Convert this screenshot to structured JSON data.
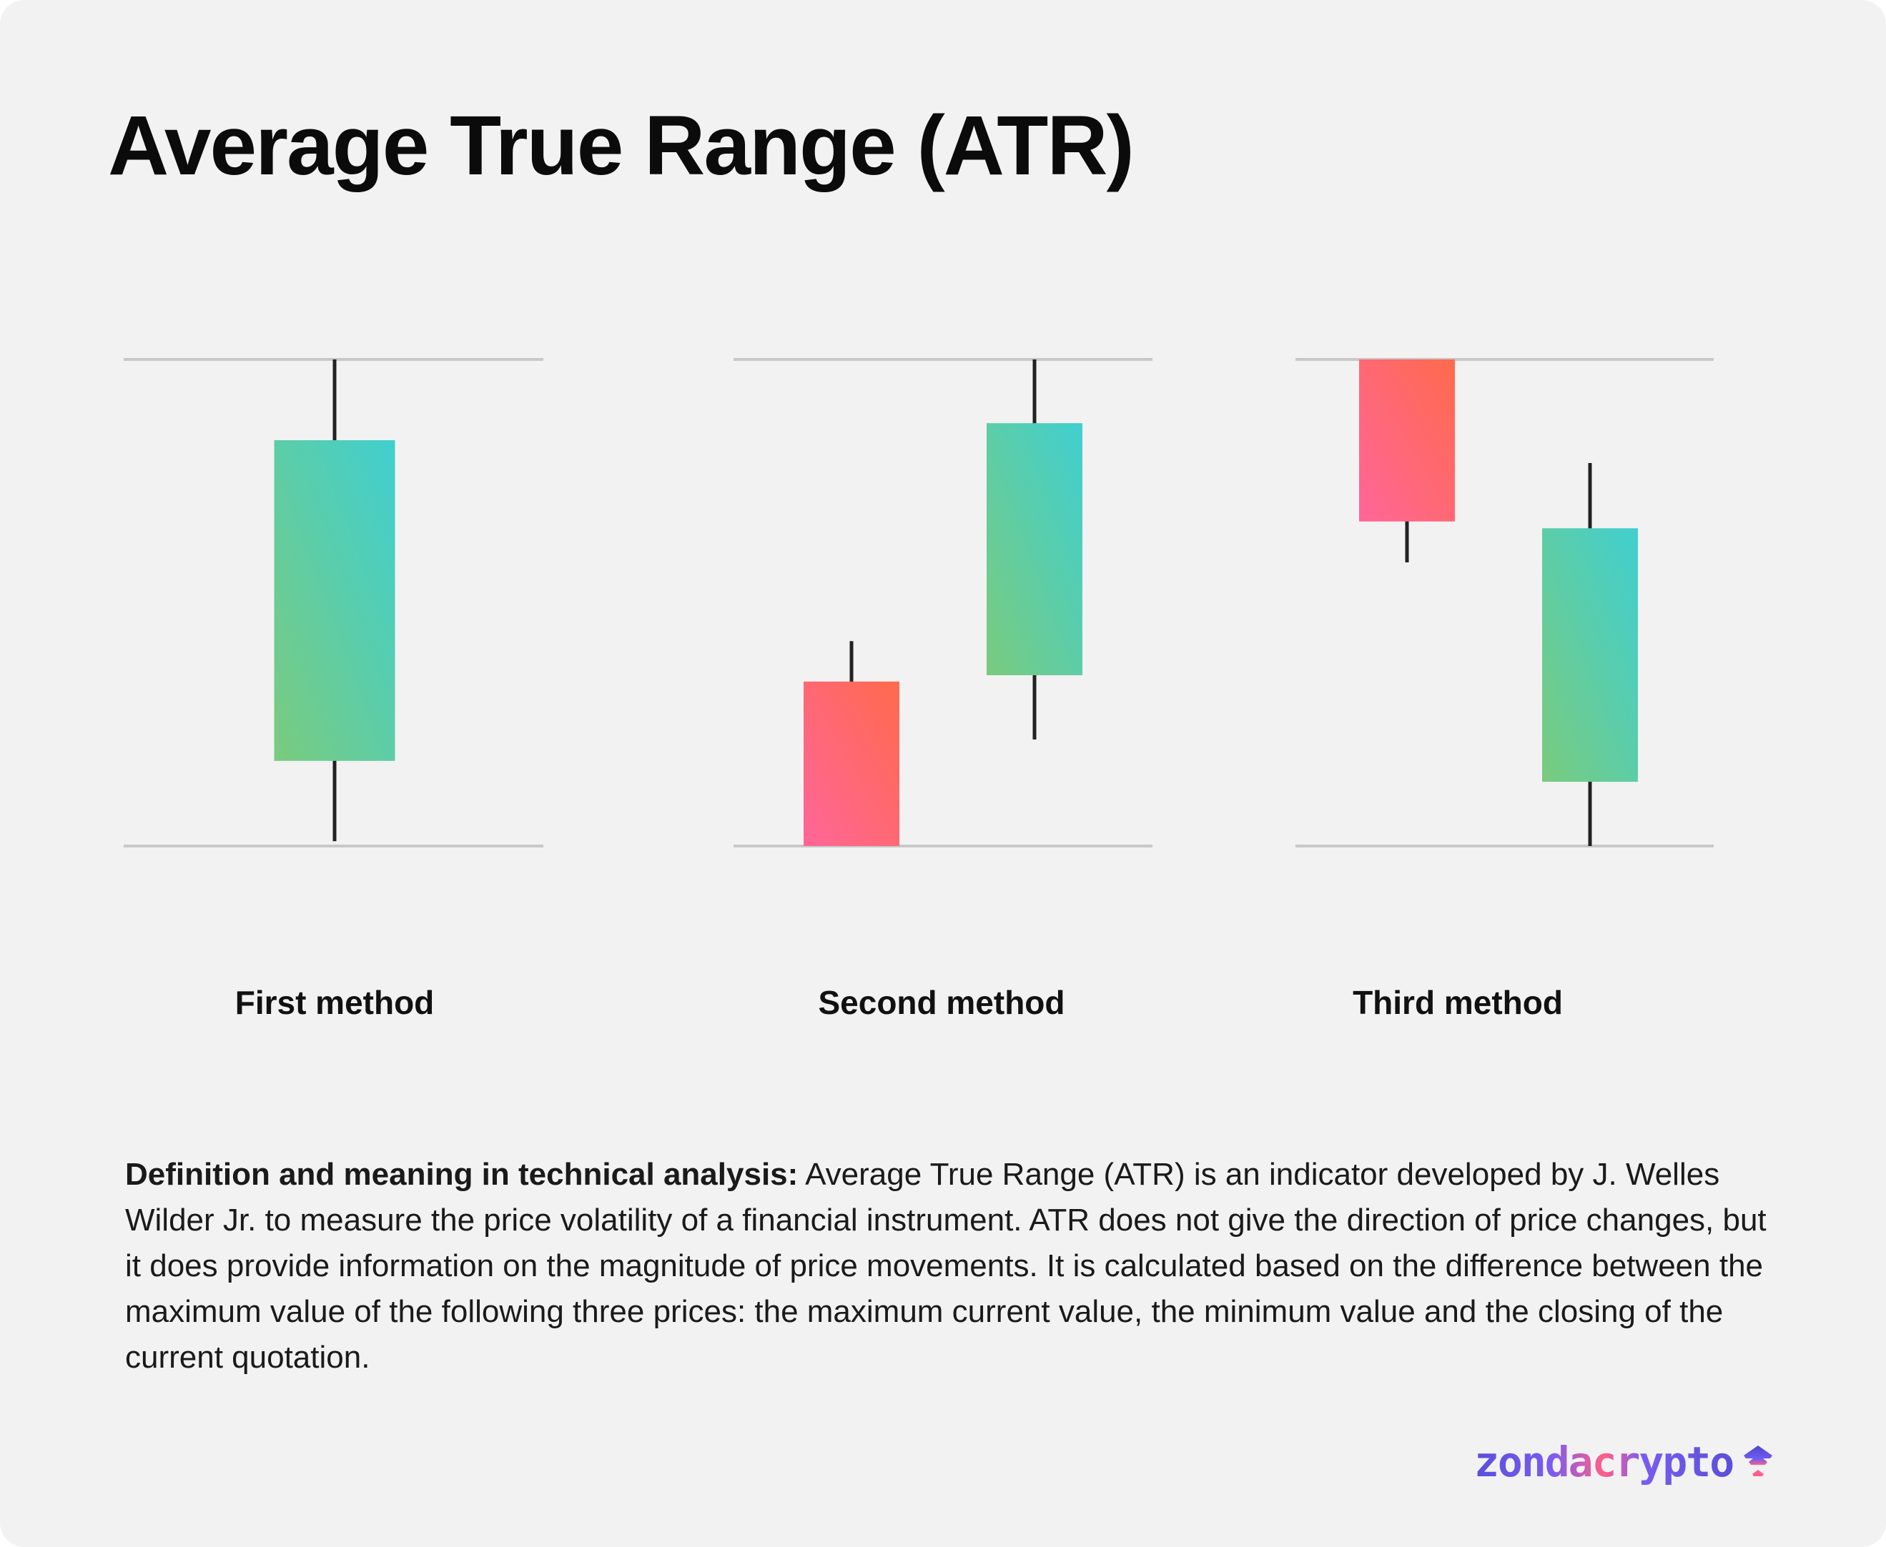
{
  "title": "Average True Range (ATR)",
  "chart_data": {
    "type": "candlestick",
    "ylim": [
      0,
      100
    ],
    "colors": {
      "bull_start": "#7acb7e",
      "bull_end": "#40cfd0",
      "bear_start": "#ff6699",
      "bear_end": "#ff6a4d",
      "wick": "#222222",
      "guide": "#c8c8c8"
    },
    "panels": [
      {
        "label": "First method",
        "candles": [
          {
            "open": 17.5,
            "high": 100,
            "low": 1,
            "close": 83.4
          }
        ]
      },
      {
        "label": "Second method",
        "candles": [
          {
            "open": 33.8,
            "high": 42.1,
            "low": 0,
            "close": 0
          },
          {
            "open": 35.1,
            "high": 100,
            "low": 21.9,
            "close": 86.9
          }
        ]
      },
      {
        "label": "Third method",
        "candles": [
          {
            "open": 100,
            "high": 100,
            "low": 58.3,
            "close": 66.7
          },
          {
            "open": 13.2,
            "high": 78.7,
            "low": 0,
            "close": 65.3
          }
        ]
      }
    ]
  },
  "description": {
    "lead": "Definition and meaning in technical analysis:",
    "body": " Average True Range (ATR) is an indicator developed by J. Welles Wilder Jr. to measure the price volatility of a financial instrument. ATR does not give the direction of price changes, but it does provide information on the magnitude of price movements. It is calculated based on the difference between the maximum value of the following three prices: the maximum current value, the minimum value and the closing of the current quotation."
  },
  "logo_text": "zondacrypto"
}
